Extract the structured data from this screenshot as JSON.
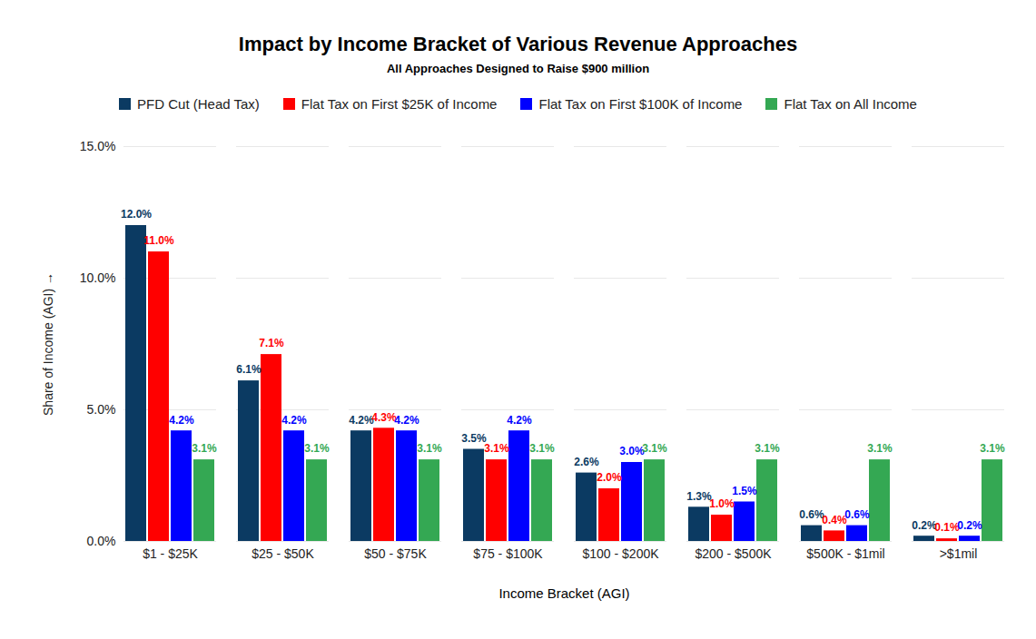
{
  "chart_data": {
    "type": "bar",
    "title": "Impact by Income Bracket of Various Revenue Approaches",
    "subtitle": "All Approaches Designed to Raise $900 million",
    "x_label": "Income Bracket (AGI)",
    "y_label": "Share of Income (AGI)",
    "categories": [
      "$1 - $25K",
      "$25 - $50K",
      "$50 - $75K",
      "$75 - $100K",
      "$100 - $200K",
      "$200 - $500K",
      "$500K - $1mil",
      ">$1mil"
    ],
    "series": [
      {
        "name": "PFD Cut (Head Tax)",
        "color": "#0b3a62",
        "values": [
          12.0,
          6.1,
          4.2,
          3.5,
          2.6,
          1.3,
          0.6,
          0.2
        ],
        "value_labels": [
          "12.0%",
          "6.1%",
          "4.2%",
          "3.5%",
          "2.6%",
          "1.3%",
          "0.6%",
          "0.2%"
        ]
      },
      {
        "name": "Flat Tax on First $25K of Income",
        "color": "#ff0000",
        "values": [
          11.0,
          7.1,
          4.3,
          3.1,
          2.0,
          1.0,
          0.4,
          0.1
        ],
        "value_labels": [
          "11.0%",
          "7.1%",
          "4.3%",
          "3.1%",
          "2.0%",
          "1.0%",
          "0.4%",
          "0.1%"
        ]
      },
      {
        "name": "Flat Tax on First $100K of Income",
        "color": "#0000ff",
        "values": [
          4.2,
          4.2,
          4.2,
          4.2,
          3.0,
          1.5,
          0.6,
          0.2
        ],
        "value_labels": [
          "4.2%",
          "4.2%",
          "4.2%",
          "4.2%",
          "3.0%",
          "1.5%",
          "0.6%",
          "0.2%"
        ]
      },
      {
        "name": "Flat Tax on All Income",
        "color": "#34a853",
        "values": [
          3.1,
          3.1,
          3.1,
          3.1,
          3.1,
          3.1,
          3.1,
          3.1
        ],
        "value_labels": [
          "3.1%",
          "3.1%",
          "3.1%",
          "3.1%",
          "3.1%",
          "3.1%",
          "3.1%",
          "3.1%"
        ]
      }
    ],
    "ylim": [
      0,
      15
    ],
    "yticks": [
      {
        "value": 0,
        "label": "0.0%"
      },
      {
        "value": 5,
        "label": "5.0%"
      },
      {
        "value": 10,
        "label": "10.0%"
      },
      {
        "value": 15,
        "label": "15.0%"
      }
    ],
    "grid": true,
    "legend": "top",
    "data_labels": true
  }
}
